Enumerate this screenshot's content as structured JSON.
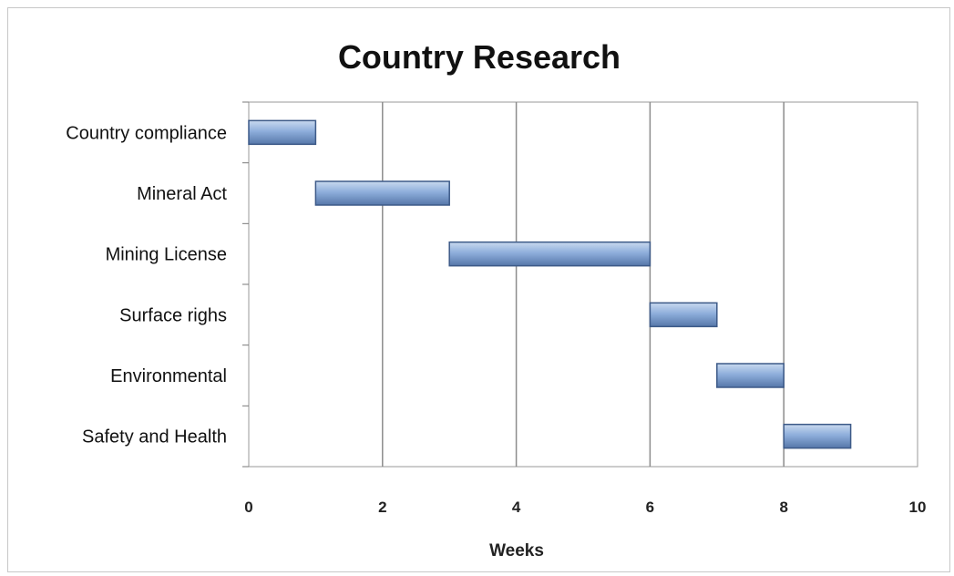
{
  "chart_data": {
    "type": "bar",
    "orientation": "horizontal-gantt",
    "title": "Country Research",
    "xlabel": "Weeks",
    "ylabel": "",
    "xlim": [
      0,
      10
    ],
    "xticks": [
      0,
      2,
      4,
      6,
      8,
      10
    ],
    "grid": true,
    "legend": "none",
    "bar_color": "#7b9fd2",
    "tasks": [
      {
        "label": "Country compliance",
        "start": 0,
        "end": 1
      },
      {
        "label": "Mineral Act",
        "start": 1,
        "end": 3
      },
      {
        "label": "Mining License",
        "start": 3,
        "end": 6
      },
      {
        "label": "Surface righs",
        "start": 6,
        "end": 7
      },
      {
        "label": "Environmental",
        "start": 7,
        "end": 8
      },
      {
        "label": "Safety and Health",
        "start": 8,
        "end": 9
      }
    ]
  }
}
